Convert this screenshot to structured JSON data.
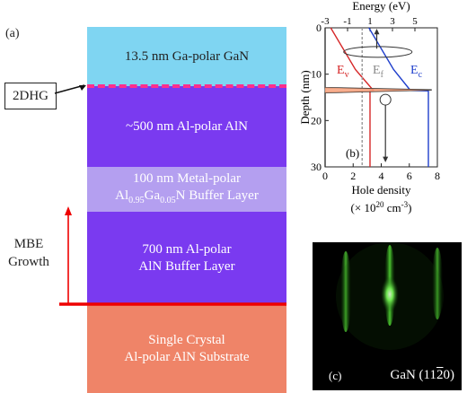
{
  "figure": {
    "panel_a_label": "(a)",
    "panel_b_label": "(b)",
    "panel_c_label": "(c)",
    "dhg_label": "2DHG",
    "growth_label_line1": "MBE",
    "growth_label_line2": "Growth"
  },
  "layers": [
    {
      "line1": "13.5 nm Ga-polar GaN",
      "line2": "",
      "color": "#7fd5f2"
    },
    {
      "line1": "~500 nm Al-polar AlN",
      "line2": "",
      "color": "#7a3af0"
    },
    {
      "line1": "100 nm Metal-polar",
      "line2": "Al0.95Ga0.05N Buffer Layer",
      "color": "#b49ff0"
    },
    {
      "line1": "700 nm Al-polar",
      "line2": "AlN Buffer Layer",
      "color": "#7a3af0"
    },
    {
      "line1": "Single Crystal",
      "line2": "Al-polar AlN Substrate",
      "color": "#ef8468"
    }
  ],
  "alloy": {
    "base1": "Al",
    "sub1": "0.95",
    "base2": "Ga",
    "sub2": "0.05",
    "rest": "N Buffer Layer"
  },
  "rheed": {
    "caption_prefix": "GaN (11",
    "caption_bar": "2",
    "caption_suffix": "0)"
  },
  "chart_data": {
    "type": "line",
    "title": "",
    "top_axis": {
      "label": "Energy (eV)",
      "range": [
        -3,
        7
      ],
      "ticks": [
        -3,
        -1,
        1,
        3,
        5
      ]
    },
    "bottom_axis": {
      "label": "Hole density",
      "unit_prefix": "(× 10",
      "unit_exp": "20",
      "unit_mid": " cm",
      "unit_exp2": "-3",
      "unit_suffix": ")",
      "range": [
        0,
        8
      ],
      "ticks": [
        0,
        2,
        4,
        6,
        8
      ]
    },
    "y_axis": {
      "label": "Depth (nm)",
      "range": [
        0,
        30
      ],
      "ticks": [
        0,
        10,
        20,
        30
      ],
      "inverted": true
    },
    "legend": {
      "ev": "E",
      "ev_sub": "v",
      "ef": "E",
      "ef_sub": "f",
      "ec": "E",
      "ec_sub": "c"
    },
    "series": [
      {
        "name": "Ev",
        "axis": "energy",
        "color": "#d62728",
        "x": [
          -2.5,
          -0.3,
          1.3,
          1.0,
          1.0
        ],
        "y": [
          0,
          9,
          13.5,
          13.6,
          30
        ]
      },
      {
        "name": "Ec",
        "axis": "energy",
        "color": "#1f3fcc",
        "x": [
          0.9,
          3.1,
          4.6,
          6.2,
          6.2
        ],
        "y": [
          0,
          9,
          13.5,
          13.6,
          30
        ]
      },
      {
        "name": "Ef",
        "axis": "energy",
        "color": "#999999",
        "x": [
          0.3,
          0.3
        ],
        "y": [
          0,
          30
        ]
      },
      {
        "name": "Hole density",
        "axis": "density",
        "color": "#333333",
        "x": [
          0,
          0,
          7.6,
          0,
          0
        ],
        "y": [
          0,
          12.9,
          13.4,
          14.0,
          30
        ]
      }
    ]
  }
}
